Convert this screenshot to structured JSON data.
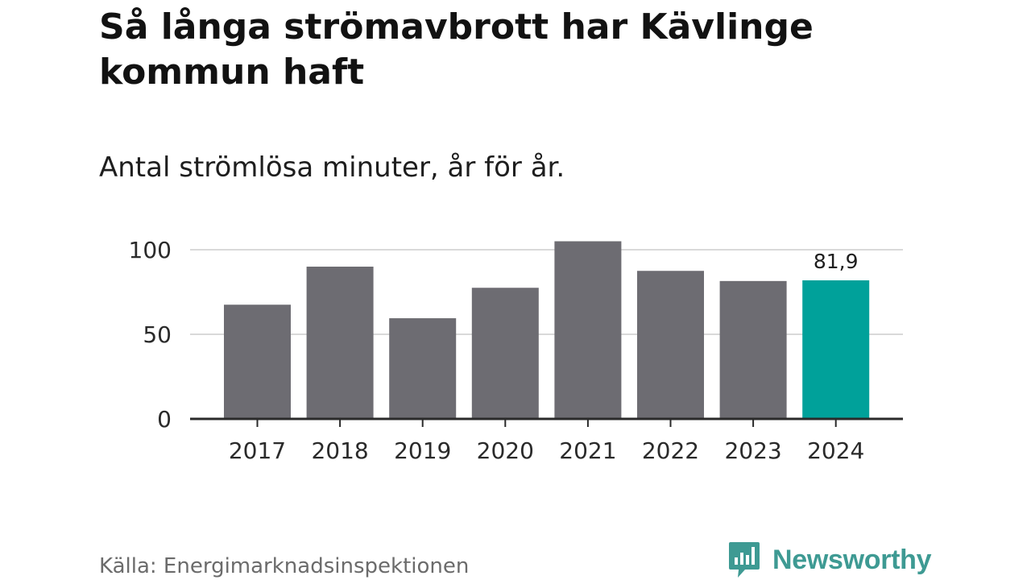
{
  "header": {
    "title": "Så långa strömavbrott har Kävlinge kommun haft",
    "subtitle": "Antal strömlösa minuter, år för år."
  },
  "chart_data": {
    "type": "bar",
    "categories": [
      "2017",
      "2018",
      "2019",
      "2020",
      "2021",
      "2022",
      "2023",
      "2024"
    ],
    "values": [
      67.5,
      90,
      59.5,
      77.5,
      105,
      87.5,
      81.5,
      81.9
    ],
    "data_labels": [
      {
        "category": "2024",
        "text": "81,9"
      }
    ],
    "ylim": [
      0,
      110
    ],
    "yticks": [
      0,
      50,
      100
    ],
    "ytick_labels": [
      "0",
      "50",
      "100"
    ],
    "grid": true,
    "xlabel": "",
    "ylabel": "",
    "colors": {
      "bar": "#6d6c72",
      "highlight": "#00a19a",
      "grid": "#d9d9d9",
      "axis": "#2a2a2a",
      "tick_text": "#2a2a2a"
    },
    "highlight_category": "2024"
  },
  "footer": {
    "source": "Källa: Energimarknadsinspektionen",
    "brand": "Newsworthy",
    "brand_icon": "bar-chart-speech-bubble-icon"
  },
  "colors": {
    "brand": "#3e9a93"
  }
}
